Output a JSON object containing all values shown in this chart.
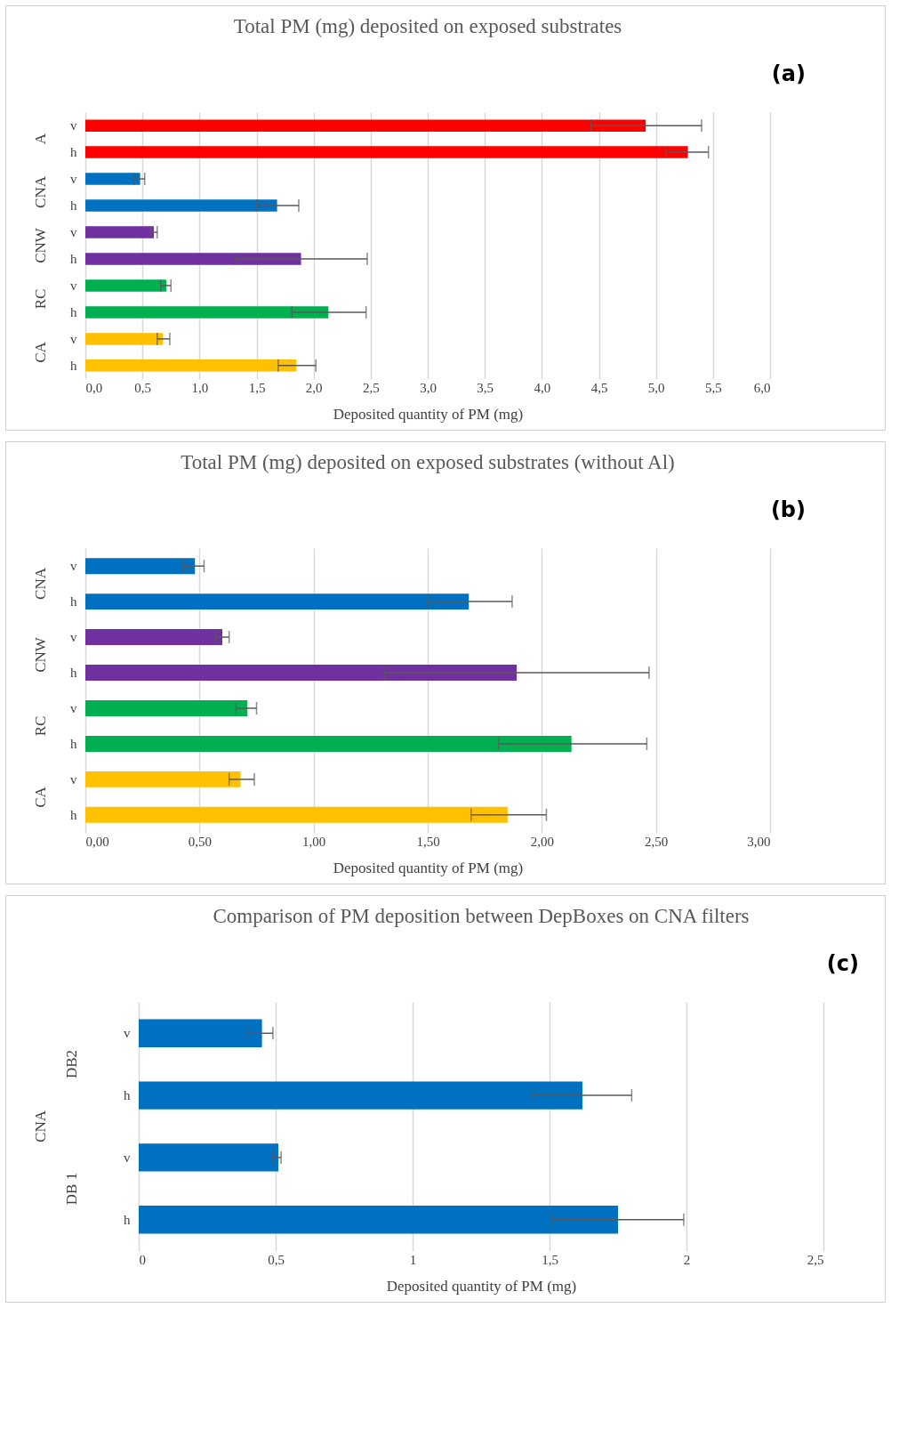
{
  "chart_data": [
    {
      "type": "bar",
      "orientation": "horizontal",
      "title": "Total PM (mg) deposited on exposed substrates",
      "xlabel": "Deposited quantity of PM (mg)",
      "annotations": [
        "(a)",
        "A",
        "CNA",
        "CNW",
        "RC",
        "CA"
      ],
      "categories": [
        "v",
        "h",
        "v",
        "h",
        "v",
        "h",
        "v",
        "h",
        "v",
        "h"
      ],
      "values": [
        4.91,
        5.28,
        0.48,
        1.68,
        0.6,
        1.89,
        0.71,
        2.13,
        0.68,
        1.85
      ],
      "colors": [
        "#ff0000",
        "#ff0000",
        "#0070c0",
        "#0070c0",
        "#7030a0",
        "#7030a0",
        "#00b050",
        "#00b050",
        "#ffc000",
        "#ffc000"
      ],
      "errors": [
        [
          4.43,
          5.4
        ],
        [
          5.09,
          5.46
        ],
        [
          0.43,
          0.52
        ],
        [
          1.5,
          1.87
        ],
        [
          0.57,
          0.63
        ],
        [
          1.31,
          2.47
        ],
        [
          0.66,
          0.75
        ],
        [
          1.81,
          2.46
        ],
        [
          0.63,
          0.74
        ],
        [
          1.69,
          2.02
        ]
      ],
      "xlim": [
        0,
        6
      ],
      "xticks": [
        {
          "value": 0,
          "label": "0,0"
        },
        {
          "value": 0.5,
          "label": "0,5"
        },
        {
          "value": 1,
          "label": "1,0"
        },
        {
          "value": 1.5,
          "label": "1,5"
        },
        {
          "value": 2,
          "label": "2,0"
        },
        {
          "value": 2.5,
          "label": "2,5"
        },
        {
          "value": 3,
          "label": "3,0"
        },
        {
          "value": 3.5,
          "label": "3,5"
        },
        {
          "value": 4,
          "label": "4,0"
        },
        {
          "value": 4.5,
          "label": "4,5"
        },
        {
          "value": 5,
          "label": "5,0"
        },
        {
          "value": 5.5,
          "label": "5,5"
        },
        {
          "value": 6,
          "label": "6,0"
        }
      ],
      "grid": "x"
    },
    {
      "type": "bar",
      "orientation": "horizontal",
      "title": "Total PM (mg) deposited on exposed substrates (without Al)",
      "xlabel": "Deposited quantity of PM (mg)",
      "annotations": [
        "(b)",
        "CNA",
        "CNW",
        "RC",
        "CA"
      ],
      "categories": [
        "v",
        "h",
        "v",
        "h",
        "v",
        "h",
        "v",
        "h"
      ],
      "values": [
        0.48,
        1.68,
        0.6,
        1.89,
        0.71,
        2.13,
        0.68,
        1.85
      ],
      "colors": [
        "#0070c0",
        "#0070c0",
        "#7030a0",
        "#7030a0",
        "#00b050",
        "#00b050",
        "#ffc000",
        "#ffc000"
      ],
      "errors": [
        [
          0.43,
          0.52
        ],
        [
          1.5,
          1.87
        ],
        [
          0.57,
          0.63
        ],
        [
          1.31,
          2.47
        ],
        [
          0.66,
          0.75
        ],
        [
          1.81,
          2.46
        ],
        [
          0.63,
          0.74
        ],
        [
          1.69,
          2.02
        ]
      ],
      "xlim": [
        0,
        3
      ],
      "xticks": [
        {
          "value": 0,
          "label": "0,00"
        },
        {
          "value": 0.5,
          "label": "0,50"
        },
        {
          "value": 1,
          "label": "1,00"
        },
        {
          "value": 1.5,
          "label": "1,50"
        },
        {
          "value": 2,
          "label": "2,00"
        },
        {
          "value": 2.5,
          "label": "2,50"
        },
        {
          "value": 3,
          "label": "3,00"
        }
      ],
      "grid": "x"
    },
    {
      "type": "bar",
      "orientation": "horizontal",
      "title": "Comparison of PM deposition between DepBoxes on CNA filters",
      "xlabel": "Deposited quantity of PM (mg)",
      "annotations": [
        "(c)",
        "DB2",
        "DB 1",
        "CNA"
      ],
      "categories": [
        "v",
        "h",
        "v",
        "h"
      ],
      "values": [
        0.45,
        1.62,
        0.51,
        1.75
      ],
      "colors": [
        "#0070c0",
        "#0070c0",
        "#0070c0",
        "#0070c0"
      ],
      "errors": [
        [
          0.4,
          0.49
        ],
        [
          1.44,
          1.8
        ],
        [
          0.49,
          0.52
        ],
        [
          1.51,
          1.99
        ]
      ],
      "xlim": [
        0,
        2.5
      ],
      "xticks": [
        0,
        {
          "value": 0.5,
          "label": "0,5"
        },
        1,
        {
          "value": 1.5,
          "label": "1,5"
        },
        2,
        {
          "value": 2.5,
          "label": "2,5"
        }
      ],
      "grid": "x"
    }
  ]
}
